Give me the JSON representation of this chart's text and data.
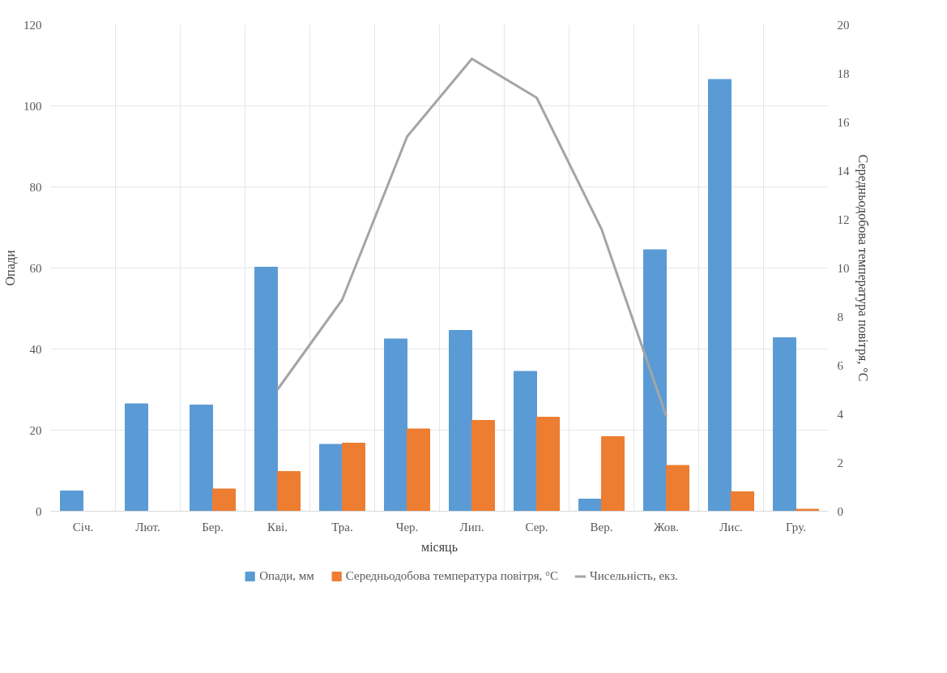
{
  "chart_data": {
    "type": "bar",
    "categories": [
      "Січ.",
      "Лют.",
      "Бер.",
      "Кві.",
      "Тра.",
      "Чер.",
      "Лип.",
      "Сер.",
      "Вер.",
      "Жов.",
      "Лис.",
      "Гру."
    ],
    "xlabel": "місяць",
    "ylabel": "Опади",
    "y2label": "Середньодобова температура повітря, °С",
    "series": [
      {
        "name": "Опади, мм",
        "color": "#5b9bd5",
        "values": [
          5,
          26.5,
          26.2,
          60.2,
          16.5,
          42.5,
          44.6,
          34.5,
          3,
          64.5,
          106.5,
          42.8
        ]
      },
      {
        "name": "Середньодобова температура повітря, °С",
        "color": "#ed7d31",
        "values": [
          null,
          null,
          5.5,
          9.8,
          16.8,
          20.3,
          22.4,
          23.2,
          18.4,
          11.3,
          4.8,
          0.5
        ]
      },
      {
        "name": "Чисельність, екз.",
        "type": "line",
        "axis": "y2",
        "color": "#a5a5a5",
        "values": [
          null,
          null,
          null,
          5.0,
          8.7,
          15.4,
          18.6,
          17.0,
          11.6,
          3.9,
          null,
          null
        ]
      }
    ],
    "ylim": [
      0,
      120
    ],
    "yticks": [
      0,
      20,
      40,
      60,
      80,
      100,
      120
    ],
    "y2lim": [
      0,
      20
    ],
    "y2ticks": [
      0,
      2,
      4,
      6,
      8,
      10,
      12,
      14,
      16,
      18,
      20
    ],
    "grid": true,
    "legend": "bottom"
  }
}
